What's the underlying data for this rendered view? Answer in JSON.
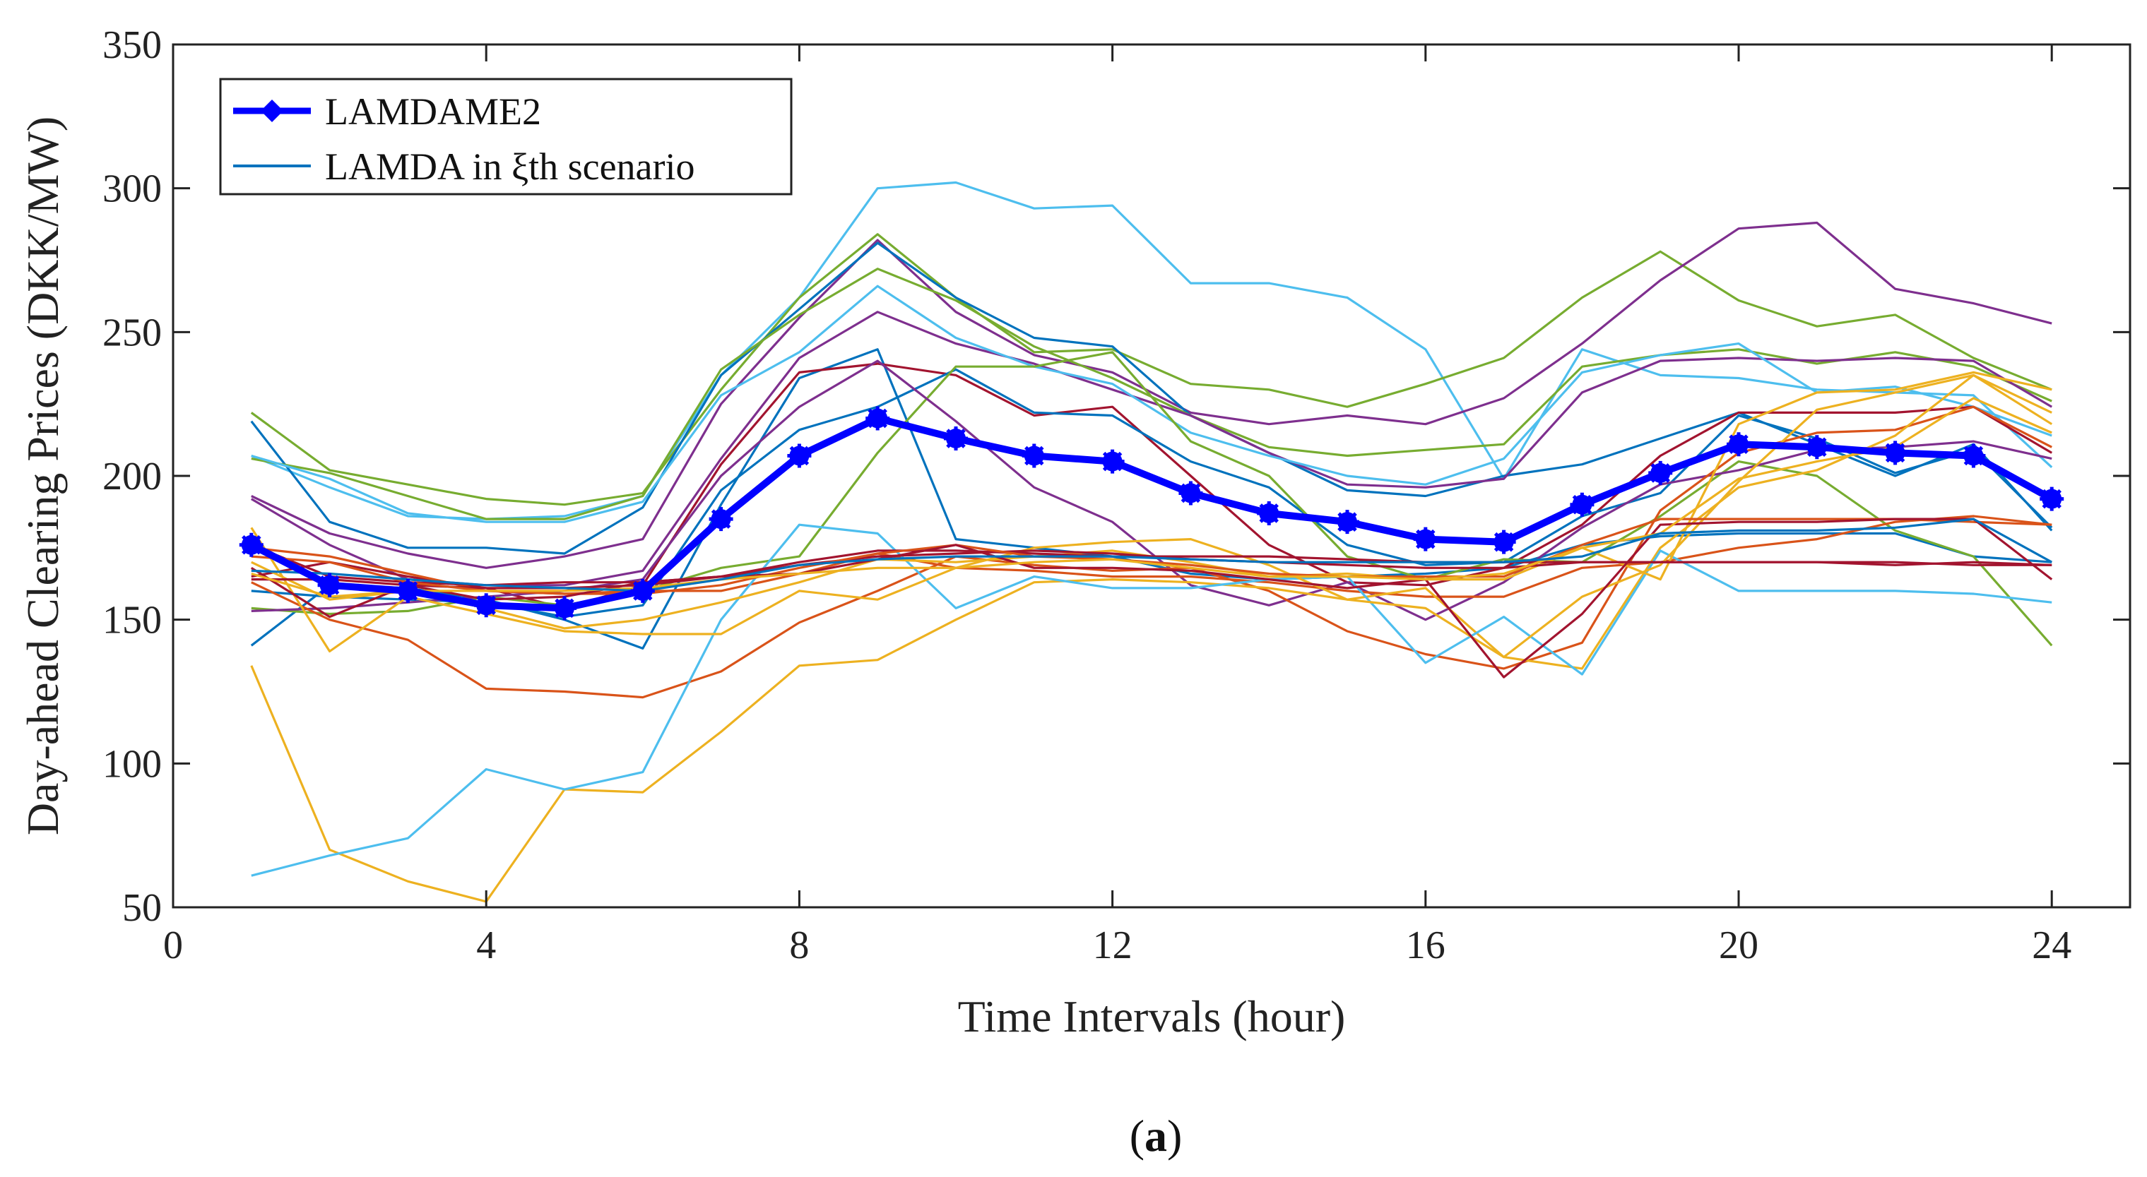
{
  "chart_data": {
    "type": "line",
    "xlabel": "Time Intervals (hour)",
    "ylabel": "Day-ahead Clearing Prices (DKK/MW)",
    "xlim": [
      0,
      25
    ],
    "ylim": [
      50,
      350
    ],
    "xticks": [
      0,
      4,
      8,
      12,
      16,
      20,
      24
    ],
    "yticks": [
      50,
      100,
      150,
      200,
      250,
      300,
      350
    ],
    "grid": false,
    "legend_position": "top-left",
    "caption_prefix": "(",
    "caption_bold": "a",
    "caption_suffix": ")",
    "x": [
      1,
      2,
      3,
      4,
      5,
      6,
      7,
      8,
      9,
      10,
      11,
      12,
      13,
      14,
      15,
      16,
      17,
      18,
      19,
      20,
      21,
      22,
      23,
      24
    ],
    "main_series": {
      "name": "LAMDAME2",
      "color": "#0000ff",
      "values": [
        176,
        162,
        160,
        155,
        154,
        160,
        185,
        207,
        220,
        213,
        207,
        205,
        194,
        187,
        184,
        178,
        177,
        190,
        201,
        211,
        210,
        208,
        207,
        192
      ]
    },
    "scenario_legend_name": "LAMDA in ξth scenario",
    "scenario_legend_color": "#0072bd",
    "scenarios": [
      {
        "color": "#4dbeee",
        "values": [
          207,
          196,
          186,
          185,
          186,
          193,
          235,
          262,
          300,
          302,
          293,
          294,
          267,
          267,
          262,
          244,
          199,
          244,
          235,
          234,
          230,
          229,
          228,
          203
        ]
      },
      {
        "color": "#77ac30",
        "values": [
          222,
          202,
          197,
          192,
          190,
          194,
          230,
          262,
          284,
          262,
          243,
          244,
          232,
          230,
          224,
          232,
          241,
          262,
          278,
          261,
          252,
          256,
          241,
          230
        ]
      },
      {
        "color": "#7e2f8e",
        "values": [
          193,
          180,
          173,
          168,
          172,
          178,
          225,
          255,
          282,
          257,
          242,
          236,
          222,
          218,
          221,
          218,
          227,
          246,
          268,
          286,
          288,
          265,
          260,
          253
        ]
      },
      {
        "color": "#0072bd",
        "values": [
          219,
          184,
          175,
          175,
          173,
          189,
          235,
          258,
          281,
          262,
          248,
          245,
          221,
          208,
          195,
          193,
          200,
          204,
          213,
          222,
          211,
          200,
          211,
          181
        ]
      },
      {
        "color": "#77ac30",
        "values": [
          206,
          201,
          193,
          185,
          185,
          193,
          237,
          256,
          272,
          261,
          245,
          234,
          221,
          210,
          207,
          209,
          211,
          238,
          242,
          244,
          239,
          243,
          238,
          226
        ]
      },
      {
        "color": "#7e2f8e",
        "values": [
          192,
          176,
          164,
          162,
          162,
          167,
          206,
          241,
          257,
          246,
          239,
          230,
          221,
          208,
          197,
          196,
          199,
          229,
          240,
          241,
          240,
          241,
          240,
          224
        ]
      },
      {
        "color": "#4dbeee",
        "values": [
          207,
          199,
          187,
          184,
          184,
          191,
          228,
          243,
          266,
          248,
          238,
          232,
          215,
          207,
          200,
          197,
          206,
          236,
          242,
          246,
          229,
          231,
          224,
          214
        ]
      },
      {
        "color": "#0072bd",
        "values": [
          141,
          162,
          161,
          157,
          150,
          140,
          190,
          234,
          244,
          178,
          175,
          172,
          166,
          164,
          165,
          166,
          168,
          176,
          179,
          180,
          180,
          180,
          172,
          170
        ]
      },
      {
        "color": "#a2142f",
        "values": [
          165,
          170,
          165,
          161,
          154,
          162,
          204,
          236,
          239,
          235,
          221,
          224,
          200,
          176,
          163,
          162,
          168,
          183,
          207,
          222,
          222,
          222,
          224,
          208
        ]
      },
      {
        "color": "#0072bd",
        "values": [
          160,
          158,
          157,
          156,
          151,
          155,
          195,
          216,
          224,
          237,
          222,
          221,
          205,
          196,
          176,
          169,
          170,
          186,
          194,
          221,
          213,
          201,
          209,
          182
        ]
      },
      {
        "color": "#77ac30",
        "values": [
          154,
          152,
          153,
          158,
          155,
          160,
          168,
          172,
          208,
          238,
          238,
          243,
          212,
          200,
          172,
          164,
          171,
          170,
          186,
          205,
          200,
          181,
          172,
          141
        ]
      },
      {
        "color": "#7e2f8e",
        "values": [
          153,
          154,
          156,
          158,
          160,
          164,
          200,
          224,
          240,
          219,
          196,
          184,
          162,
          155,
          163,
          150,
          163,
          182,
          197,
          202,
          209,
          210,
          212,
          206
        ]
      },
      {
        "color": "#d95319",
        "values": [
          163,
          150,
          143,
          126,
          125,
          123,
          132,
          149,
          160,
          172,
          169,
          167,
          168,
          160,
          146,
          138,
          133,
          142,
          188,
          208,
          215,
          216,
          224,
          210
        ]
      },
      {
        "color": "#d95319",
        "values": [
          175,
          172,
          166,
          160,
          159,
          160,
          160,
          166,
          173,
          168,
          167,
          165,
          165,
          163,
          160,
          158,
          158,
          168,
          170,
          175,
          178,
          184,
          186,
          183
        ]
      },
      {
        "color": "#edb120",
        "values": [
          134,
          70,
          59,
          52,
          91,
          90,
          111,
          134,
          136,
          150,
          163,
          164,
          163,
          161,
          157,
          161,
          137,
          133,
          175,
          196,
          202,
          214,
          235,
          222
        ]
      },
      {
        "color": "#4dbeee",
        "values": [
          61,
          68,
          74,
          98,
          91,
          97,
          150,
          183,
          180,
          154,
          165,
          161,
          161,
          164,
          165,
          135,
          151,
          131,
          174,
          160,
          160,
          160,
          159,
          156
        ]
      },
      {
        "color": "#edb120",
        "values": [
          182,
          139,
          158,
          152,
          146,
          145,
          145,
          160,
          157,
          168,
          175,
          177,
          178,
          169,
          157,
          154,
          137,
          158,
          169,
          198,
          223,
          229,
          235,
          218
        ]
      },
      {
        "color": "#edb120",
        "values": [
          170,
          157,
          160,
          154,
          147,
          150,
          156,
          163,
          171,
          170,
          172,
          174,
          170,
          165,
          166,
          164,
          164,
          175,
          164,
          218,
          229,
          230,
          236,
          230
        ]
      },
      {
        "color": "#a2142f",
        "values": [
          176,
          165,
          163,
          162,
          163,
          163,
          165,
          169,
          172,
          173,
          174,
          173,
          171,
          170,
          169,
          168,
          168,
          170,
          170,
          170,
          170,
          169,
          170,
          169
        ]
      },
      {
        "color": "#a2142f",
        "values": [
          164,
          164,
          162,
          161,
          161,
          162,
          165,
          170,
          174,
          174,
          173,
          172,
          172,
          172,
          171,
          170,
          170,
          170,
          170,
          170,
          170,
          170,
          169,
          169
        ]
      },
      {
        "color": "#d95319",
        "values": [
          172,
          170,
          163,
          160,
          159,
          159,
          162,
          168,
          173,
          176,
          172,
          171,
          169,
          166,
          165,
          165,
          165,
          176,
          185,
          185,
          185,
          185,
          184,
          183
        ]
      },
      {
        "color": "#a2142f",
        "values": [
          168,
          151,
          162,
          157,
          158,
          163,
          165,
          166,
          171,
          176,
          168,
          168,
          167,
          164,
          161,
          164,
          130,
          152,
          183,
          184,
          184,
          185,
          185,
          164
        ]
      },
      {
        "color": "#edb120",
        "values": [
          166,
          158,
          160,
          160,
          160,
          161,
          164,
          166,
          168,
          168,
          170,
          171,
          168,
          165,
          165,
          164,
          166,
          175,
          180,
          199,
          205,
          210,
          227,
          215
        ]
      },
      {
        "color": "#0072bd",
        "values": [
          167,
          166,
          164,
          162,
          161,
          160,
          164,
          169,
          171,
          172,
          172,
          172,
          171,
          170,
          170,
          170,
          170,
          172,
          180,
          181,
          181,
          182,
          185,
          170
        ]
      }
    ]
  }
}
